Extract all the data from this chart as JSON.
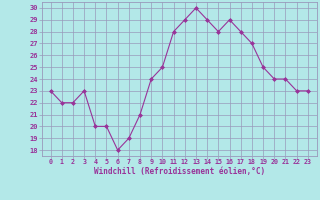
{
  "x": [
    0,
    1,
    2,
    3,
    4,
    5,
    6,
    7,
    8,
    9,
    10,
    11,
    12,
    13,
    14,
    15,
    16,
    17,
    18,
    19,
    20,
    21,
    22,
    23
  ],
  "y": [
    23,
    22,
    22,
    23,
    20,
    20,
    18,
    19,
    21,
    24,
    25,
    28,
    29,
    30,
    29,
    28,
    29,
    28,
    27,
    25,
    24,
    24,
    23,
    23
  ],
  "ylim_min": 17.5,
  "ylim_max": 30.5,
  "yticks": [
    18,
    19,
    20,
    21,
    22,
    23,
    24,
    25,
    26,
    27,
    28,
    29,
    30
  ],
  "xticks": [
    0,
    1,
    2,
    3,
    4,
    5,
    6,
    7,
    8,
    9,
    10,
    11,
    12,
    13,
    14,
    15,
    16,
    17,
    18,
    19,
    20,
    21,
    22,
    23
  ],
  "line_color": "#993399",
  "bg_color": "#b3e8e8",
  "grid_color": "#9999bb",
  "xlabel": "Windchill (Refroidissement éolien,°C)",
  "figsize": [
    3.2,
    2.0
  ],
  "dpi": 100
}
